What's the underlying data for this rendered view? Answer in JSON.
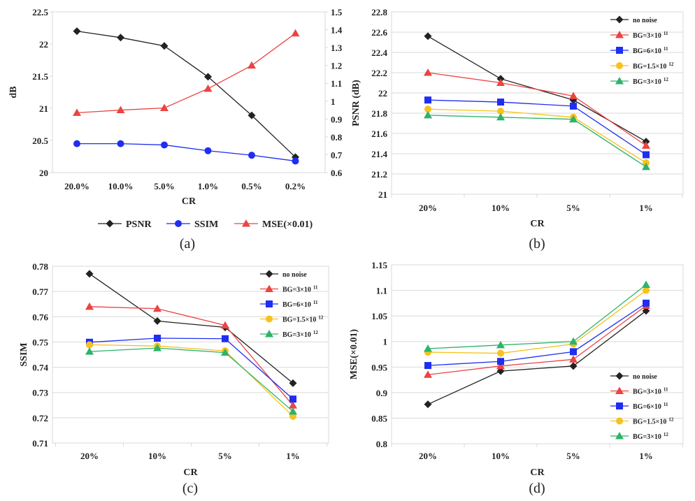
{
  "colors": {
    "black": "#222222",
    "red": "#ec4343",
    "blue": "#1f2ef0",
    "yellow": "#f6c21c",
    "green": "#2eb36a",
    "grid": "#d9d9d9"
  },
  "chart_data": [
    {
      "panel": "(a)",
      "type": "line",
      "categories": [
        "20.0%",
        "10.0%",
        "5.0%",
        "1.0%",
        "0.5%",
        "0.2%"
      ],
      "xlabel": "CR",
      "ylabel": "dB",
      "ylim": [
        20,
        22.5
      ],
      "yticks": [
        "20",
        "20.5",
        "21",
        "21.5",
        "22",
        "22.5"
      ],
      "ylim_right": [
        0.6,
        1.5
      ],
      "yticks_right": [
        "0.6",
        "0.7",
        "0.8",
        "0.9",
        "1",
        "1.1",
        "1.2",
        "1.3",
        "1.4",
        "1.5"
      ],
      "grid": false,
      "legend_position": "bottom",
      "series": [
        {
          "name": "PSNR",
          "axis": "left",
          "color": "black",
          "marker": "diamond",
          "values": [
            22.2,
            22.1,
            21.97,
            21.49,
            20.89,
            20.24
          ]
        },
        {
          "name": "SSIM",
          "axis": "left",
          "color": "blue",
          "marker": "circle",
          "values": [
            20.45,
            20.45,
            20.43,
            20.34,
            20.27,
            20.18
          ]
        },
        {
          "name": "MSE(×0.01)",
          "axis": "right",
          "color": "red",
          "marker": "triangle",
          "values": [
            0.935,
            0.95,
            0.962,
            1.07,
            1.2,
            1.38
          ]
        }
      ]
    },
    {
      "panel": "(b)",
      "type": "line",
      "categories": [
        "20%",
        "10%",
        "5%",
        "1%"
      ],
      "xlabel": "CR",
      "ylabel": "PSNR (dB)",
      "ylim": [
        21,
        22.8
      ],
      "yticks": [
        "21",
        "21.2",
        "21.4",
        "21.6",
        "21.8",
        "22",
        "22.2",
        "22.4",
        "22.6",
        "22.8"
      ],
      "grid": true,
      "legend_position": "top-right",
      "series": [
        {
          "name": "no noise",
          "color": "black",
          "marker": "diamond",
          "values": [
            22.56,
            22.14,
            21.93,
            21.52
          ]
        },
        {
          "name": "BG=3×10",
          "sup": "11",
          "color": "red",
          "marker": "triangle",
          "values": [
            22.2,
            22.1,
            21.97,
            21.48
          ]
        },
        {
          "name": "BG=6×10",
          "sup": "11",
          "color": "blue",
          "marker": "square",
          "values": [
            21.93,
            21.91,
            21.87,
            21.39
          ]
        },
        {
          "name": "BG=1.5×10",
          "sup": "12",
          "color": "yellow",
          "marker": "circle",
          "values": [
            21.84,
            21.82,
            21.76,
            21.31
          ]
        },
        {
          "name": "BG=3×10",
          "sup": "12",
          "color": "green",
          "marker": "triangle",
          "values": [
            21.78,
            21.76,
            21.74,
            21.27
          ]
        }
      ]
    },
    {
      "panel": "(c)",
      "type": "line",
      "categories": [
        "20%",
        "10%",
        "5%",
        "1%"
      ],
      "xlabel": "CR",
      "ylabel": "SSIM",
      "ylim": [
        0.71,
        0.78
      ],
      "yticks": [
        "0.71",
        "0.72",
        "0.73",
        "0.74",
        "0.75",
        "0.76",
        "0.77",
        "0.78"
      ],
      "grid": true,
      "legend_position": "top-right",
      "series": [
        {
          "name": "no noise",
          "color": "black",
          "marker": "diamond",
          "values": [
            0.777,
            0.7583,
            0.7558,
            0.7337
          ]
        },
        {
          "name": "BG=3×10",
          "sup": "11",
          "color": "red",
          "marker": "triangle",
          "values": [
            0.764,
            0.7632,
            0.7566,
            0.7249
          ]
        },
        {
          "name": "BG=6×10",
          "sup": "11",
          "color": "blue",
          "marker": "square",
          "values": [
            0.7499,
            0.7515,
            0.7513,
            0.7274
          ]
        },
        {
          "name": "BG=1.5×10",
          "sup": "12",
          "color": "yellow",
          "marker": "circle",
          "values": [
            0.7489,
            0.7484,
            0.7465,
            0.7206
          ]
        },
        {
          "name": "BG=3×10",
          "sup": "12",
          "color": "green",
          "marker": "triangle",
          "values": [
            0.7462,
            0.7476,
            0.7458,
            0.7225
          ]
        }
      ]
    },
    {
      "panel": "(d)",
      "type": "line",
      "categories": [
        "20%",
        "10%",
        "5%",
        "1%"
      ],
      "xlabel": "CR",
      "ylabel": "MSE(×0.01)",
      "ylim": [
        0.8,
        1.15
      ],
      "yticks": [
        "0.8",
        "0.85",
        "0.9",
        "0.95",
        "1",
        "1.05",
        "1.1",
        "1.15"
      ],
      "grid": true,
      "legend_position": "bottom-right",
      "series": [
        {
          "name": "no noise",
          "color": "black",
          "marker": "diamond",
          "values": [
            0.877,
            0.942,
            0.952,
            1.06
          ]
        },
        {
          "name": "BG=3×10",
          "sup": "11",
          "color": "red",
          "marker": "triangle",
          "values": [
            0.935,
            0.952,
            0.965,
            1.07
          ]
        },
        {
          "name": "BG=6×10",
          "sup": "11",
          "color": "blue",
          "marker": "square",
          "values": [
            0.953,
            0.961,
            0.98,
            1.075
          ]
        },
        {
          "name": "BG=1.5×10",
          "sup": "12",
          "color": "yellow",
          "marker": "circle",
          "values": [
            0.979,
            0.977,
            0.995,
            1.1
          ]
        },
        {
          "name": "BG=3×10",
          "sup": "12",
          "color": "green",
          "marker": "triangle",
          "values": [
            0.986,
            0.993,
            1.0,
            1.111
          ]
        }
      ]
    }
  ]
}
